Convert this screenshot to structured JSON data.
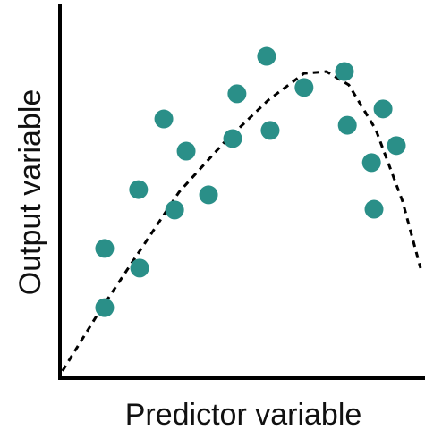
{
  "chart_data": {
    "type": "scatter",
    "x_label": "Predictor variable",
    "y_label": "Output variable",
    "xlim": [
      0,
      100
    ],
    "ylim": [
      0,
      100
    ],
    "points": {
      "color": "#2a8f88",
      "x": [
        12.4,
        12.4,
        22.1,
        21.8,
        28.8,
        31.8,
        35.0,
        41.2,
        47.9,
        49.1,
        58.3,
        57.3,
        67.7,
        78.9,
        79.7,
        89.6,
        86.4,
        93.3,
        87.1
      ],
      "y": [
        18.8,
        34.8,
        29.5,
        50.7,
        69.8,
        45.2,
        61.1,
        49.3,
        64.5,
        76.6,
        66.7,
        86.7,
        78.3,
        82.6,
        68.1,
        72.5,
        58.0,
        62.6,
        45.4
      ]
    },
    "curve": {
      "color": "#000000",
      "dashed": true,
      "x": [
        0.7,
        10.7,
        20.6,
        33.0,
        45.4,
        57.8,
        67.7,
        73.9,
        80.1,
        87.6,
        95.0,
        100
      ],
      "y": [
        1.7,
        17.4,
        31.9,
        50.0,
        63.3,
        74.9,
        82.1,
        82.6,
        79.0,
        66.9,
        47.6,
        29.5
      ]
    }
  }
}
